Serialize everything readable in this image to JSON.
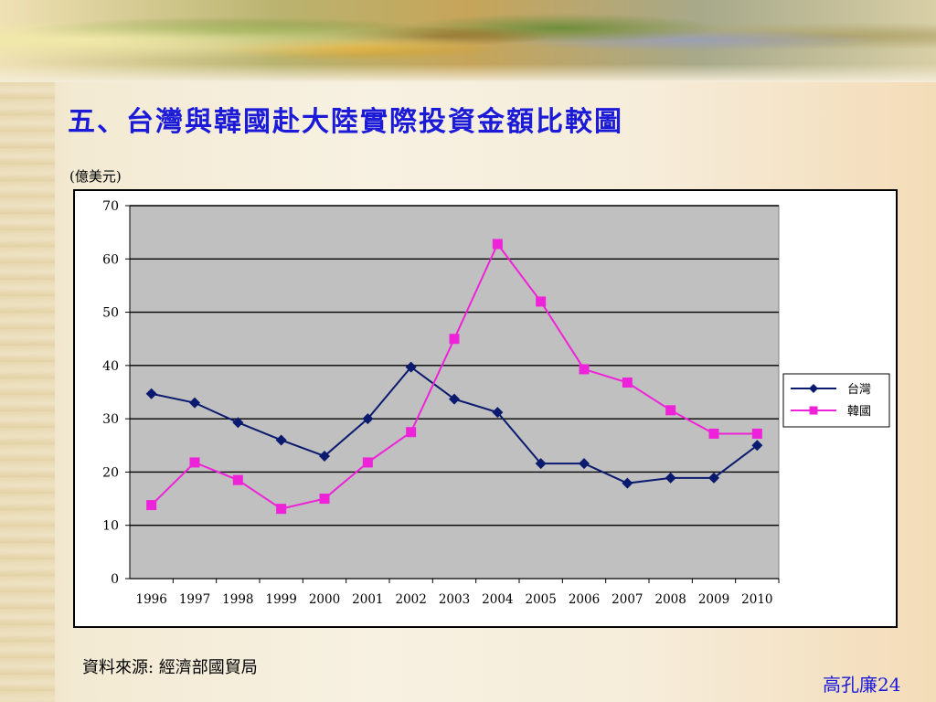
{
  "slide": {
    "title": "五、台灣與韓國赴大陸實際投資金額比較圖",
    "unit_label": "(億美元)",
    "source_label": "資料來源: 經濟部國貿局",
    "footer_text": "高孔廉24",
    "title_color": "#1a1ad8"
  },
  "chart_data": {
    "type": "line",
    "title": "",
    "xlabel": "",
    "ylabel": "(億美元)",
    "categories": [
      "1996",
      "1997",
      "1998",
      "1999",
      "2000",
      "2001",
      "2002",
      "2003",
      "2004",
      "2005",
      "2006",
      "2007",
      "2008",
      "2009",
      "2010"
    ],
    "ylim": [
      0,
      70
    ],
    "yticks": [
      0,
      10,
      20,
      30,
      40,
      50,
      60,
      70
    ],
    "grid": true,
    "legend_position": "right",
    "plot_background": "#c0c0c0",
    "series": [
      {
        "name": "台灣",
        "color": "#0a1a6e",
        "marker": "diamond",
        "values": [
          34.7,
          33.0,
          29.3,
          26.0,
          23.0,
          30.0,
          39.7,
          33.7,
          31.2,
          21.6,
          21.6,
          17.9,
          18.9,
          18.9,
          25.0
        ]
      },
      {
        "name": "韓國",
        "color": "#ee22d8",
        "marker": "square",
        "values": [
          13.8,
          21.8,
          18.5,
          13.1,
          15.0,
          21.8,
          27.5,
          45.0,
          62.8,
          52.0,
          39.3,
          36.8,
          31.6,
          27.2,
          27.2
        ]
      }
    ]
  }
}
